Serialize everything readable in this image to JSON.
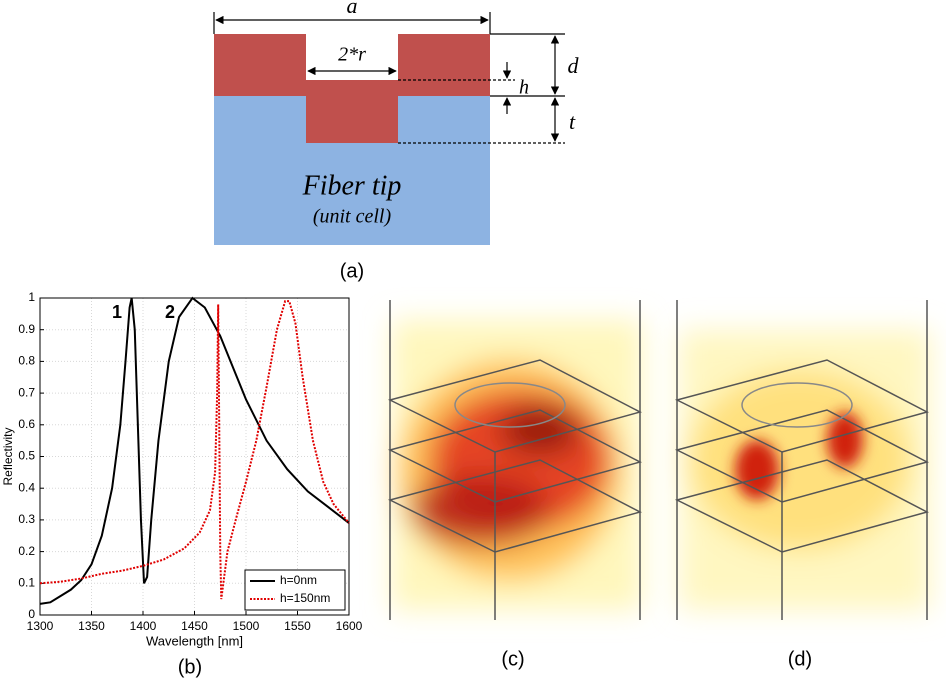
{
  "diagram": {
    "labels": {
      "a": "a",
      "r": "2*r",
      "h": "h",
      "d": "d",
      "t": "t"
    },
    "title": "Fiber tip",
    "subtitle": "(unit cell)",
    "caption": "(a)"
  },
  "chart_data": {
    "type": "line",
    "caption": "(b)",
    "x_label": "Wavelength [nm]",
    "y_label": "Reflectivity",
    "annotations": [
      "1",
      "2"
    ],
    "xlim": [
      1300,
      1600
    ],
    "xticks": [
      1300,
      1350,
      1400,
      1450,
      1500,
      1550,
      1600
    ],
    "ylim": [
      0,
      1
    ],
    "yticks": [
      0,
      0.1,
      0.2,
      0.3,
      0.4,
      0.5,
      0.6,
      0.7,
      0.8,
      0.9,
      1
    ],
    "grid": true,
    "legend": "lower right",
    "series": [
      {
        "name": "h=0nm",
        "color": "#000000",
        "line_style": "solid",
        "x": [
          1300,
          1310,
          1320,
          1330,
          1340,
          1350,
          1360,
          1370,
          1378,
          1383,
          1387,
          1389,
          1392,
          1395,
          1398,
          1401,
          1404,
          1408,
          1415,
          1425,
          1435,
          1448,
          1460,
          1475,
          1490,
          1500,
          1520,
          1540,
          1560,
          1580,
          1600
        ],
        "values": [
          0.035,
          0.04,
          0.06,
          0.08,
          0.11,
          0.16,
          0.25,
          0.4,
          0.6,
          0.8,
          0.97,
          1.0,
          0.9,
          0.6,
          0.3,
          0.1,
          0.12,
          0.3,
          0.55,
          0.8,
          0.94,
          1.0,
          0.97,
          0.88,
          0.76,
          0.68,
          0.55,
          0.46,
          0.39,
          0.34,
          0.29
        ]
      },
      {
        "name": "h=150nm",
        "color": "#e00000",
        "line_style": "dotted",
        "x": [
          1300,
          1320,
          1340,
          1360,
          1380,
          1400,
          1420,
          1440,
          1455,
          1465,
          1470,
          1472,
          1473,
          1474,
          1475,
          1476,
          1478,
          1482,
          1490,
          1500,
          1510,
          1520,
          1530,
          1538,
          1542,
          1548,
          1555,
          1565,
          1575,
          1585,
          1600
        ],
        "values": [
          0.1,
          0.105,
          0.115,
          0.13,
          0.14,
          0.155,
          0.175,
          0.21,
          0.26,
          0.33,
          0.45,
          0.7,
          0.98,
          0.6,
          0.2,
          0.05,
          0.1,
          0.2,
          0.3,
          0.42,
          0.55,
          0.72,
          0.9,
          0.99,
          0.99,
          0.92,
          0.75,
          0.55,
          0.42,
          0.35,
          0.29
        ]
      }
    ]
  },
  "panels": [
    {
      "caption": "(c)"
    },
    {
      "caption": "(d)"
    }
  ]
}
